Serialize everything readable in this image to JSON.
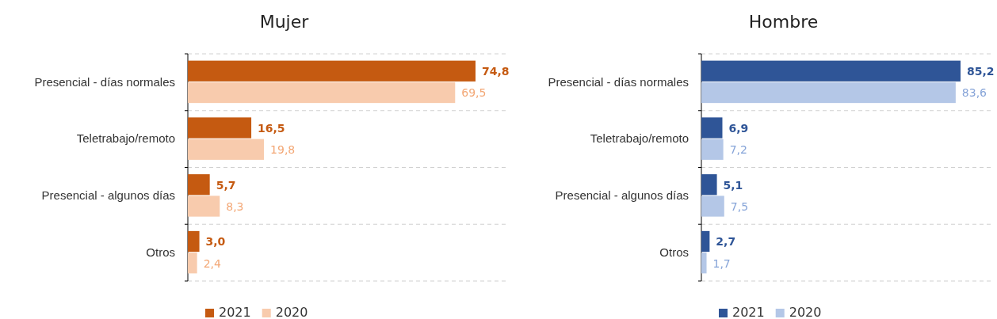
{
  "chart_data": [
    {
      "type": "bar",
      "orientation": "horizontal",
      "title": "Mujer",
      "categories": [
        "Presencial - días normales",
        "Teletrabajo/remoto",
        "Presencial - algunos días",
        "Otros"
      ],
      "grid": "y",
      "legend": "bottom",
      "series": [
        {
          "name": "2021",
          "color": "#c55a11",
          "values": [
            74.8,
            16.5,
            5.7,
            3.0
          ],
          "value_labels": [
            "74,8",
            "16,5",
            "5,7",
            "3,0"
          ]
        },
        {
          "name": "2020",
          "color": "#f8cbad",
          "values": [
            69.5,
            19.8,
            8.3,
            2.4
          ],
          "value_labels": [
            "69,5",
            "19,8",
            "8,3",
            "2,4"
          ]
        }
      ]
    },
    {
      "type": "bar",
      "orientation": "horizontal",
      "title": "Hombre",
      "categories": [
        "Presencial - días normales",
        "Teletrabajo/remoto",
        "Presencial - algunos días",
        "Otros"
      ],
      "grid": "y",
      "legend": "bottom",
      "series": [
        {
          "name": "2021",
          "color": "#2f5597",
          "values": [
            85.2,
            6.9,
            5.1,
            2.7
          ],
          "value_labels": [
            "85,2",
            "6,9",
            "5,1",
            "2,7"
          ]
        },
        {
          "name": "2020",
          "color": "#b4c7e7",
          "values": [
            83.6,
            7.2,
            7.5,
            1.7
          ],
          "value_labels": [
            "83,6",
            "7,2",
            "7,5",
            "1,7"
          ]
        }
      ]
    }
  ]
}
